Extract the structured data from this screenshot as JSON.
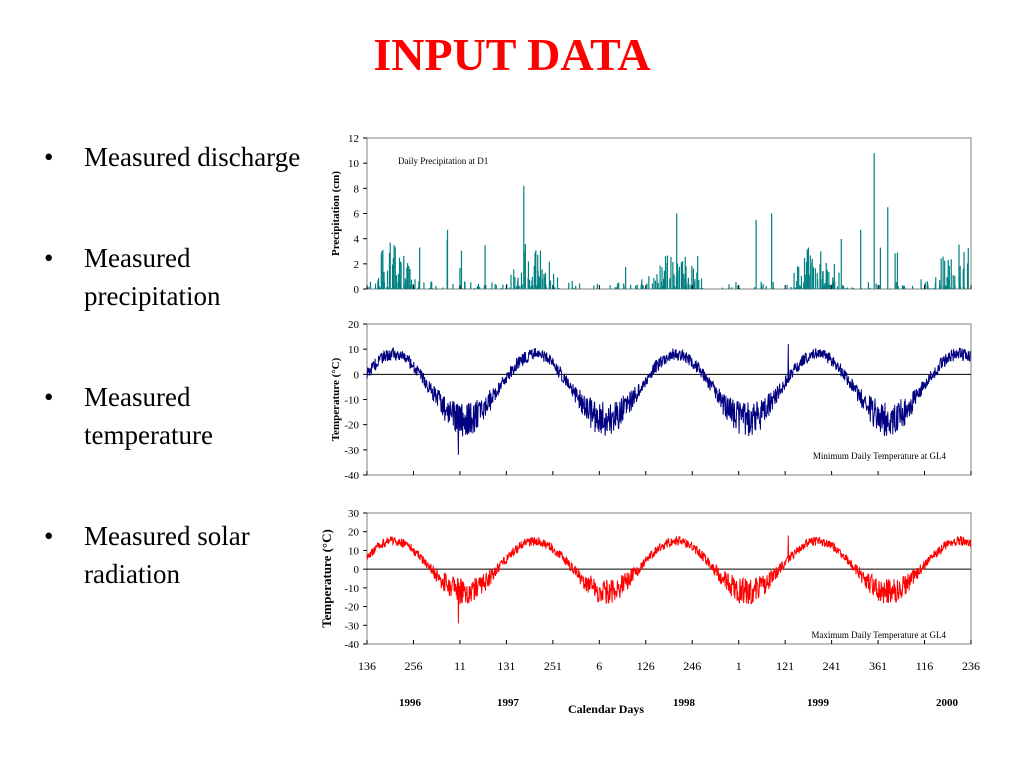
{
  "slide": {
    "title": "INPUT DATA",
    "bullets": [
      "Measured discharge",
      "Measured precipitation",
      "Measured temperature",
      "Measured solar radiation"
    ]
  },
  "x_axis": {
    "tick_labels": [
      "136",
      "256",
      "11",
      "131",
      "251",
      "6",
      "126",
      "246",
      "1",
      "121",
      "241",
      "361",
      "116",
      "236"
    ],
    "year_labels": [
      "1996",
      "1997",
      "1998",
      "1999",
      "2000"
    ],
    "title": "Calendar Days"
  },
  "chart_data": [
    {
      "type": "bar",
      "annotation": "Daily Precipitation at D1",
      "ylabel": "Precipitation (cm)",
      "ylim": [
        0,
        12
      ],
      "yticks": [
        0,
        2,
        4,
        6,
        8,
        10,
        12
      ],
      "color": "#008080",
      "x_range_days": [
        0,
        1560
      ],
      "spikes": [
        {
          "day": 405,
          "value": 8.2
        },
        {
          "day": 1310,
          "value": 10.8
        },
        {
          "day": 800,
          "value": 6.0
        },
        {
          "day": 1005,
          "value": 5.5
        },
        {
          "day": 1045,
          "value": 6.0
        },
        {
          "day": 1275,
          "value": 4.7
        },
        {
          "day": 1345,
          "value": 6.5
        },
        {
          "day": 208,
          "value": 4.7
        }
      ]
    },
    {
      "type": "line",
      "annotation": "Minimum Daily Temperature at GL4",
      "ylabel": "Temperature (°C)",
      "ylim": [
        -40,
        20
      ],
      "yticks": [
        -40,
        -30,
        -20,
        -10,
        0,
        10,
        20
      ],
      "color": "#000080",
      "seasonal_summer_peak": 8,
      "seasonal_winter_trough": -18,
      "recorded_extremes": [
        {
          "day": 236,
          "value": -32
        },
        {
          "day": 1088,
          "value": 12
        }
      ]
    },
    {
      "type": "line",
      "annotation": "Maximum Daily Temperature at GL4",
      "ylabel": "Temperature (°C)",
      "ylim": [
        -40,
        30
      ],
      "yticks": [
        -40,
        -30,
        -20,
        -10,
        0,
        10,
        20,
        30
      ],
      "color": "#ff0000",
      "seasonal_summer_peak": 15,
      "seasonal_winter_trough": -12,
      "recorded_extremes": [
        {
          "day": 236,
          "value": -29
        },
        {
          "day": 1088,
          "value": 18
        }
      ]
    }
  ]
}
